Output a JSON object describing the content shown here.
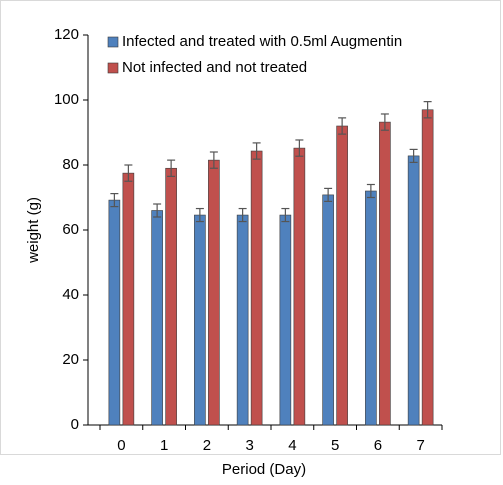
{
  "chart_data": {
    "type": "bar",
    "x_label": "Period (Day)",
    "y_label": "weight (g)",
    "categories": [
      "0",
      "1",
      "2",
      "3",
      "4",
      "5",
      "6",
      "7"
    ],
    "series": [
      {
        "name": "Infected and treated with 0.5ml Augmentin",
        "color": "#4f81bd",
        "values": [
          69.2,
          66,
          64.6,
          64.6,
          64.6,
          70.8,
          72,
          82.8
        ],
        "errors": [
          2,
          2,
          2,
          2,
          2,
          2,
          2,
          2
        ]
      },
      {
        "name": "Not infected and not treated",
        "color": "#c0504d",
        "values": [
          77.5,
          79,
          81.5,
          84.3,
          85.2,
          92,
          93.2,
          97
        ],
        "errors": [
          2.5,
          2.5,
          2.5,
          2.5,
          2.5,
          2.5,
          2.5,
          2.5
        ]
      }
    ],
    "ylim": [
      0,
      120
    ],
    "yticks": [
      0,
      20,
      40,
      60,
      80,
      100,
      120
    ],
    "legend": "top-left"
  }
}
